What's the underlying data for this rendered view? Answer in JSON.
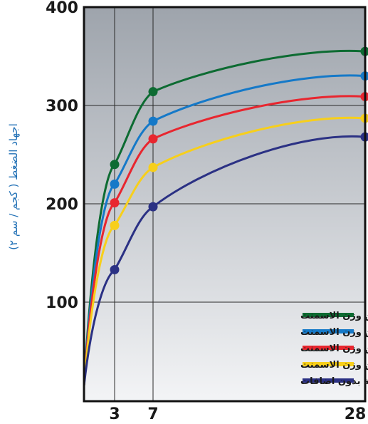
{
  "chart_data": {
    "type": "line",
    "title": "",
    "xlabel": "",
    "ylabel": "اجهاد الضغط ( كجم / سم ٢)",
    "x_ticks": [
      3,
      7,
      28
    ],
    "y_ticks": [
      100,
      200,
      300,
      400
    ],
    "xlim": [
      0,
      28
    ],
    "ylim": [
      0,
      400
    ],
    "grid": true,
    "legend_position": "bottom-right",
    "series": [
      {
        "name": "اضافة ٢,٤٪ من وزن الاسمنت",
        "color": "#0d6b32",
        "x": [
          0,
          3,
          7,
          28
        ],
        "y": [
          15,
          240,
          314,
          355
        ]
      },
      {
        "name": "اضافة ١,٢٪ من وزن الاسمنت",
        "color": "#1579c8",
        "x": [
          0,
          3,
          7,
          28
        ],
        "y": [
          15,
          220,
          284,
          330
        ]
      },
      {
        "name": "اضافة ٠,٦٪ من وزن الاسمنت",
        "color": "#e8262f",
        "x": [
          0,
          3,
          7,
          28
        ],
        "y": [
          15,
          201,
          266,
          309
        ]
      },
      {
        "name": "اضافة ٠,٢٥٪ من وزن الاسمنت",
        "color": "#f7cf1b",
        "x": [
          0,
          3,
          7,
          28
        ],
        "y": [
          15,
          178,
          237,
          287
        ]
      },
      {
        "name": "خلطة بدون اضافات",
        "color": "#2b3184",
        "x": [
          0,
          3,
          7,
          28
        ],
        "y": [
          15,
          133,
          197,
          268
        ]
      }
    ]
  }
}
